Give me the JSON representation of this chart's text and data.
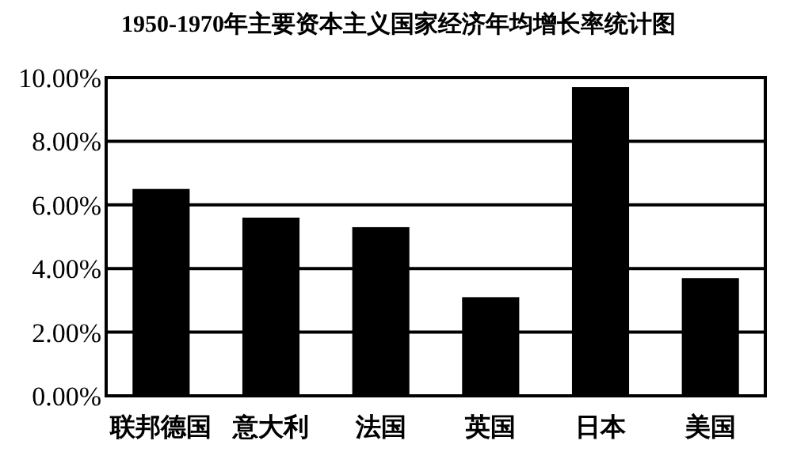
{
  "chart_data": {
    "type": "bar",
    "title": "1950-1970年主要资本主义国家经济年均增长率统计图",
    "categories": [
      "联邦德国",
      "意大利",
      "法国",
      "英国",
      "日本",
      "美国"
    ],
    "values": [
      6.5,
      5.6,
      5.3,
      3.1,
      9.7,
      3.7
    ],
    "color": "#000000",
    "ylim": [
      0,
      10
    ],
    "yticks": [
      {
        "value": 0,
        "label": "0.00%"
      },
      {
        "value": 2,
        "label": "2.00%"
      },
      {
        "value": 4,
        "label": "4.00%"
      },
      {
        "value": 6,
        "label": "6.00%"
      },
      {
        "value": 8,
        "label": "8.00%"
      },
      {
        "value": 10,
        "label": "10.00%"
      }
    ],
    "grid": "y"
  }
}
